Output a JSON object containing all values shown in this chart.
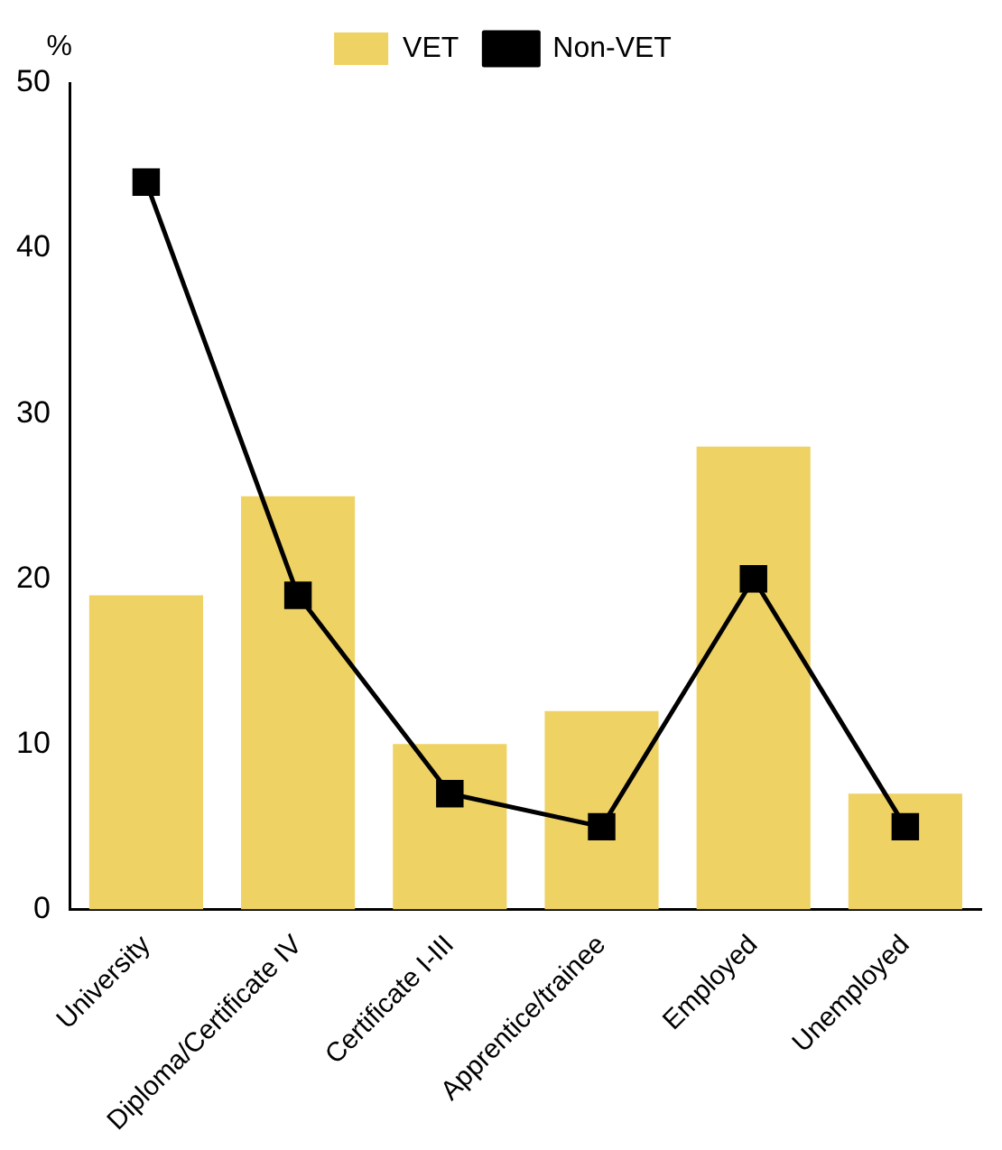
{
  "chart_data": {
    "type": "bar",
    "ylabel": "%",
    "categories": [
      "University",
      "Diploma/Certificate IV",
      "Certificate I-III",
      "Apprentice/trainee",
      "Employed",
      "Unemployed"
    ],
    "series": [
      {
        "name": "VET",
        "color": "#efd264",
        "values": [
          19,
          25,
          10,
          12,
          28,
          7
        ]
      },
      {
        "name": "Non-VET",
        "type": "line",
        "color": "#000000",
        "values": [
          44,
          19,
          7,
          5,
          20,
          5
        ]
      }
    ],
    "ylim": [
      0,
      50
    ],
    "yticks": [
      0,
      10,
      20,
      30,
      40,
      50
    ],
    "grid": false,
    "legend": "top",
    "marker": "square",
    "line_style": "solid"
  }
}
